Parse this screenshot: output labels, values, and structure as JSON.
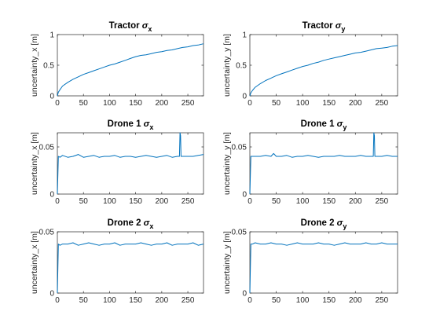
{
  "figure": {
    "background": "#ffffff",
    "line_color": "#0072bd"
  },
  "chart_data": [
    {
      "type": "line",
      "title_prefix": "Tractor",
      "title_symbol": "σ",
      "title_sub": "x",
      "xlabel": "",
      "ylabel": "uncertainty_x [m]",
      "xlim": [
        0,
        280
      ],
      "ylim": [
        0,
        1
      ],
      "xticks": [
        0,
        50,
        100,
        150,
        200,
        250
      ],
      "yticks": [
        0,
        0.5,
        1
      ],
      "ytick_labels": [
        "0",
        "0.5",
        "1"
      ],
      "series": [
        {
          "x": [
            0,
            2,
            5,
            10,
            20,
            30,
            40,
            50,
            60,
            70,
            80,
            90,
            100,
            110,
            120,
            130,
            140,
            150,
            160,
            170,
            180,
            190,
            200,
            210,
            220,
            230,
            240,
            250,
            260,
            270,
            280
          ],
          "y": [
            0,
            0.06,
            0.1,
            0.16,
            0.22,
            0.27,
            0.31,
            0.35,
            0.38,
            0.41,
            0.44,
            0.47,
            0.5,
            0.52,
            0.55,
            0.58,
            0.61,
            0.64,
            0.66,
            0.67,
            0.69,
            0.71,
            0.72,
            0.74,
            0.75,
            0.77,
            0.79,
            0.8,
            0.82,
            0.83,
            0.85
          ]
        }
      ]
    },
    {
      "type": "line",
      "title_prefix": "Tractor",
      "title_symbol": "σ",
      "title_sub": "y",
      "xlabel": "",
      "ylabel": "uncertainty_y [m]",
      "xlim": [
        0,
        280
      ],
      "ylim": [
        0,
        1
      ],
      "xticks": [
        0,
        50,
        100,
        150,
        200,
        250
      ],
      "yticks": [
        0,
        0.5,
        1
      ],
      "ytick_labels": [
        "0",
        "0.5",
        "1"
      ],
      "series": [
        {
          "x": [
            0,
            2,
            5,
            10,
            20,
            30,
            40,
            50,
            60,
            70,
            80,
            90,
            100,
            110,
            120,
            130,
            140,
            150,
            160,
            170,
            180,
            190,
            200,
            210,
            220,
            230,
            240,
            250,
            260,
            270,
            280
          ],
          "y": [
            0,
            0.05,
            0.09,
            0.14,
            0.2,
            0.25,
            0.29,
            0.33,
            0.36,
            0.39,
            0.42,
            0.45,
            0.48,
            0.5,
            0.53,
            0.55,
            0.58,
            0.6,
            0.62,
            0.64,
            0.66,
            0.68,
            0.7,
            0.71,
            0.73,
            0.75,
            0.77,
            0.78,
            0.79,
            0.81,
            0.82
          ]
        }
      ]
    },
    {
      "type": "line",
      "title_prefix": "Drone 1",
      "title_symbol": "σ",
      "title_sub": "x",
      "xlabel": "",
      "ylabel": "uncertainty_x [m]",
      "xlim": [
        0,
        280
      ],
      "ylim": [
        0,
        0.065
      ],
      "xticks": [
        0,
        50,
        100,
        150,
        200,
        250
      ],
      "yticks": [
        0,
        0.05
      ],
      "ytick_labels": [
        "0",
        "0.05"
      ],
      "series": [
        {
          "x": [
            0,
            2,
            5,
            10,
            20,
            30,
            40,
            50,
            60,
            70,
            80,
            90,
            100,
            110,
            120,
            130,
            140,
            150,
            160,
            170,
            180,
            190,
            200,
            210,
            220,
            230,
            234,
            235,
            236,
            237,
            240,
            250,
            260,
            270,
            280
          ],
          "y": [
            0,
            0.04,
            0.039,
            0.041,
            0.039,
            0.04,
            0.042,
            0.039,
            0.04,
            0.041,
            0.039,
            0.04,
            0.04,
            0.041,
            0.039,
            0.04,
            0.04,
            0.039,
            0.04,
            0.041,
            0.04,
            0.039,
            0.04,
            0.041,
            0.039,
            0.04,
            0.04,
            0.065,
            0.062,
            0.04,
            0.04,
            0.04,
            0.04,
            0.041,
            0.042
          ]
        }
      ]
    },
    {
      "type": "line",
      "title_prefix": "Drone 1",
      "title_symbol": "σ",
      "title_sub": "y",
      "xlabel": "",
      "ylabel": "uncertainty_y [m]",
      "xlim": [
        0,
        280
      ],
      "ylim": [
        0,
        0.065
      ],
      "xticks": [
        0,
        50,
        100,
        150,
        200,
        250
      ],
      "yticks": [
        0,
        0.05
      ],
      "ytick_labels": [
        "0",
        "0.05"
      ],
      "series": [
        {
          "x": [
            0,
            2,
            5,
            10,
            20,
            30,
            40,
            45,
            50,
            60,
            70,
            80,
            90,
            100,
            110,
            120,
            130,
            140,
            150,
            160,
            170,
            180,
            190,
            200,
            210,
            220,
            230,
            234,
            235,
            236,
            237,
            240,
            250,
            260,
            270,
            280
          ],
          "y": [
            0,
            0.04,
            0.04,
            0.04,
            0.04,
            0.041,
            0.04,
            0.043,
            0.04,
            0.04,
            0.041,
            0.039,
            0.04,
            0.04,
            0.041,
            0.04,
            0.039,
            0.04,
            0.04,
            0.04,
            0.041,
            0.04,
            0.04,
            0.04,
            0.041,
            0.04,
            0.04,
            0.04,
            0.065,
            0.062,
            0.04,
            0.04,
            0.04,
            0.041,
            0.04,
            0.04
          ]
        }
      ]
    },
    {
      "type": "line",
      "title_prefix": "Drone 2",
      "title_symbol": "σ",
      "title_sub": "x",
      "xlabel": "",
      "ylabel": "uncertainty_x [m]",
      "xlim": [
        0,
        280
      ],
      "ylim": [
        0,
        0.05
      ],
      "xticks": [
        0,
        50,
        100,
        150,
        200,
        250
      ],
      "yticks": [
        0,
        0.05
      ],
      "ytick_labels": [
        "0",
        "0.05"
      ],
      "series": [
        {
          "x": [
            0,
            2,
            5,
            10,
            20,
            30,
            40,
            50,
            60,
            70,
            80,
            90,
            100,
            110,
            120,
            130,
            140,
            150,
            160,
            170,
            180,
            190,
            200,
            210,
            220,
            230,
            240,
            250,
            260,
            270,
            280
          ],
          "y": [
            0,
            0.04,
            0.039,
            0.04,
            0.04,
            0.041,
            0.039,
            0.04,
            0.041,
            0.04,
            0.039,
            0.04,
            0.04,
            0.041,
            0.039,
            0.04,
            0.04,
            0.04,
            0.041,
            0.04,
            0.039,
            0.04,
            0.04,
            0.041,
            0.039,
            0.04,
            0.04,
            0.04,
            0.041,
            0.039,
            0.04
          ]
        }
      ]
    },
    {
      "type": "line",
      "title_prefix": "Drone 2",
      "title_symbol": "σ",
      "title_sub": "y",
      "xlabel": "",
      "ylabel": "uncertainty_y [m]",
      "xlim": [
        0,
        280
      ],
      "ylim": [
        0,
        0.05
      ],
      "xticks": [
        0,
        50,
        100,
        150,
        200,
        250
      ],
      "yticks": [
        0,
        0.05
      ],
      "ytick_labels": [
        "0",
        "0.05"
      ],
      "series": [
        {
          "x": [
            0,
            2,
            5,
            10,
            20,
            30,
            40,
            50,
            60,
            70,
            80,
            90,
            100,
            110,
            120,
            130,
            140,
            150,
            160,
            170,
            180,
            190,
            200,
            210,
            220,
            230,
            240,
            250,
            260,
            270,
            280
          ],
          "y": [
            0,
            0.04,
            0.04,
            0.041,
            0.04,
            0.04,
            0.041,
            0.04,
            0.04,
            0.039,
            0.04,
            0.041,
            0.04,
            0.04,
            0.04,
            0.041,
            0.04,
            0.04,
            0.039,
            0.04,
            0.041,
            0.04,
            0.04,
            0.04,
            0.041,
            0.04,
            0.04,
            0.041,
            0.04,
            0.04,
            0.04
          ]
        }
      ]
    }
  ]
}
